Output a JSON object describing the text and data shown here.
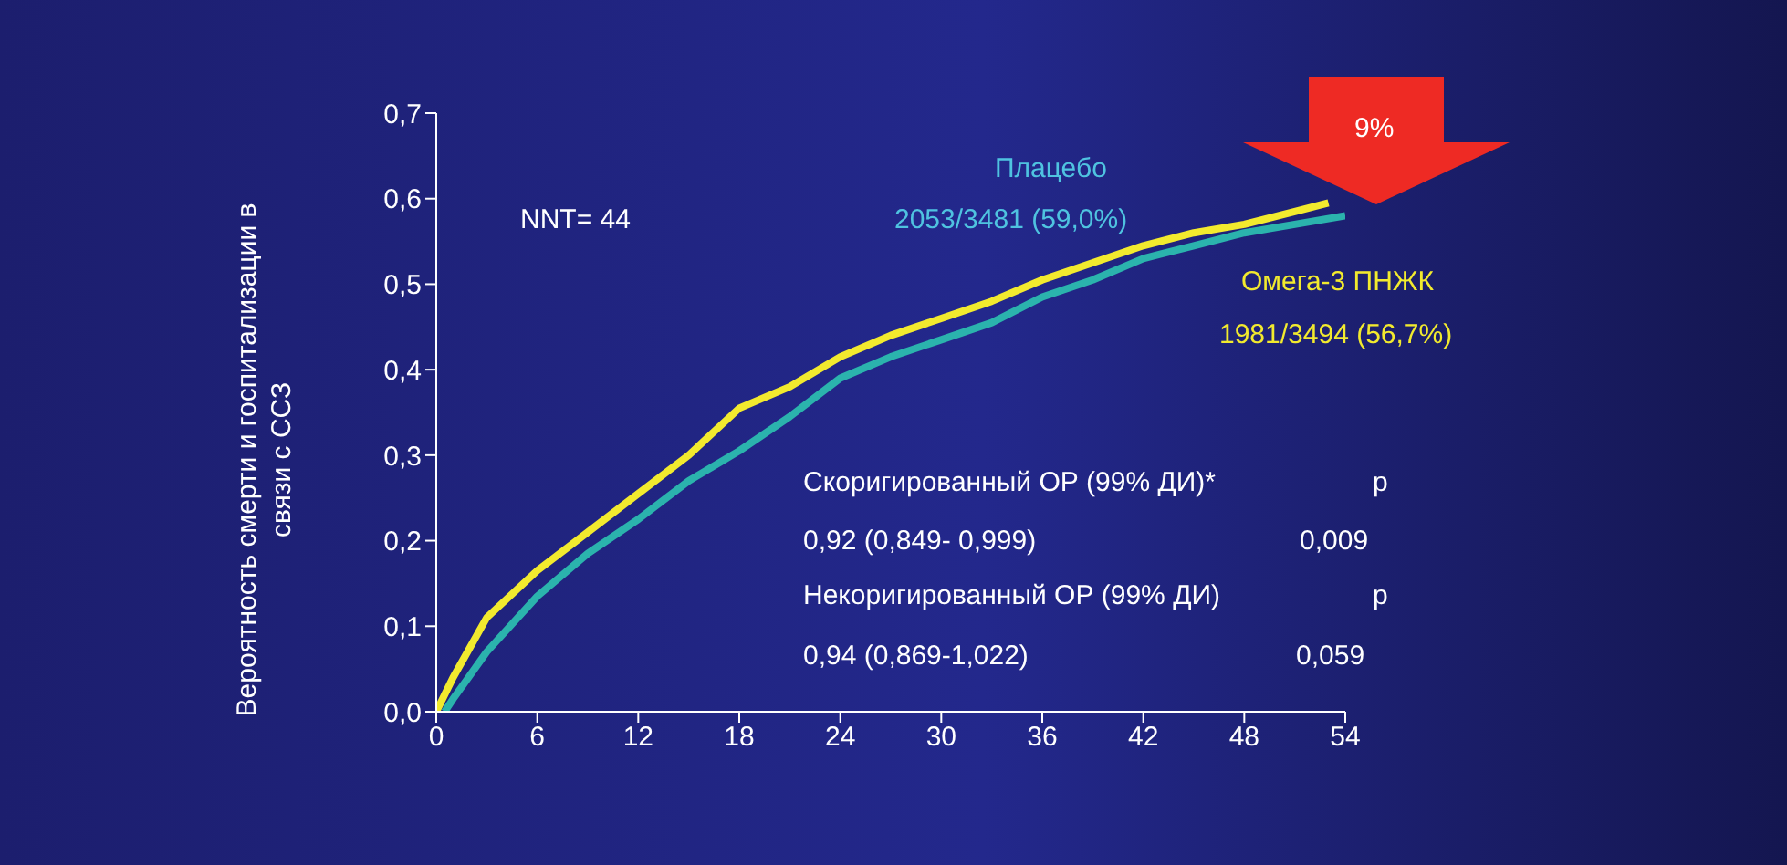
{
  "chart_data": {
    "type": "line",
    "ylabel": "Вероятность смерти и госпитализации в связи с ССЗ",
    "xlim": [
      0,
      54
    ],
    "xticks": [
      0,
      6,
      12,
      18,
      24,
      30,
      36,
      42,
      48,
      54
    ],
    "ylim": [
      0,
      0.7
    ],
    "yticks": [
      {
        "value": 0,
        "label": "0,0"
      },
      {
        "value": 0.1,
        "label": "0,1"
      },
      {
        "value": 0.2,
        "label": "0,2"
      },
      {
        "value": 0.3,
        "label": "0,3"
      },
      {
        "value": 0.4,
        "label": "0,4"
      },
      {
        "value": 0.5,
        "label": "0,5"
      },
      {
        "value": 0.6,
        "label": "0,6"
      },
      {
        "value": 0.7,
        "label": "0,7"
      }
    ],
    "grid": false,
    "legend": false,
    "marker": "none",
    "line_style": "solid",
    "series": [
      {
        "color": "#f2ea2e",
        "x": [
          0,
          1,
          3,
          6,
          9,
          12,
          15,
          18,
          21,
          24,
          27,
          30,
          33,
          36,
          39,
          42,
          45,
          48,
          51,
          53
        ],
        "values": [
          0,
          0.04,
          0.11,
          0.165,
          0.21,
          0.255,
          0.3,
          0.355,
          0.38,
          0.415,
          0.44,
          0.46,
          0.48,
          0.505,
          0.525,
          0.545,
          0.56,
          0.57,
          0.585,
          0.595
        ]
      },
      {
        "color": "#2bb3ad",
        "x": [
          0.5,
          1,
          3,
          6,
          9,
          12,
          15,
          18,
          21,
          24,
          27,
          30,
          33,
          36,
          39,
          42,
          45,
          48,
          51,
          54
        ],
        "values": [
          0,
          0.015,
          0.07,
          0.135,
          0.185,
          0.225,
          0.27,
          0.305,
          0.345,
          0.39,
          0.415,
          0.435,
          0.455,
          0.485,
          0.505,
          0.53,
          0.545,
          0.56,
          0.57,
          0.58
        ]
      }
    ],
    "annotations": [
      "NNT= 44",
      "Плацебо",
      "2053/3481 (59,0%)",
      "Омега-3 ПНЖК",
      "1981/3494 (56,7%)",
      "9%",
      "Скоригированный ОР (99% ДИ)*",
      "p",
      "0,92 (0,849- 0,999)",
      "0,009",
      "Некоригированный ОР (99% ДИ)",
      "p",
      "0,94 (0,869-1,022)",
      "0,059"
    ]
  }
}
